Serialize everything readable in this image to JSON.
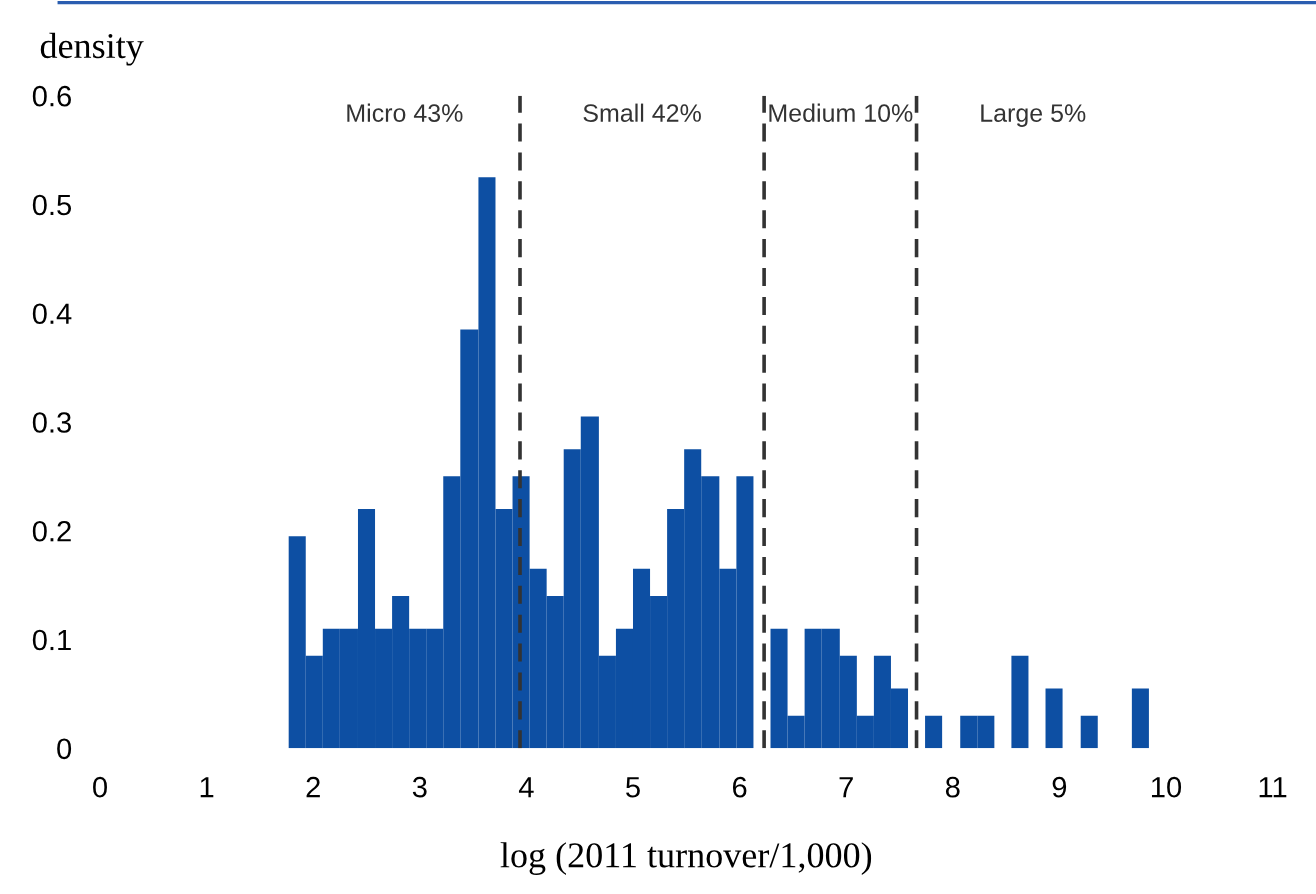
{
  "chart_data": {
    "type": "histogram",
    "xlabel": "log (2011 turnover/1,000)",
    "ylabel": "density",
    "color": "#0d4fa3",
    "bins": [
      1.77,
      1.93,
      2.09,
      2.25,
      2.42,
      2.58,
      2.74,
      2.9,
      3.06,
      3.22,
      3.38,
      3.55,
      3.71,
      3.87,
      4.03,
      4.19,
      4.35,
      4.51,
      4.68,
      4.84,
      5.0,
      5.16,
      5.32,
      5.48,
      5.64,
      5.81,
      5.97,
      6.13,
      6.29,
      6.45,
      6.61,
      6.77,
      6.94,
      7.1,
      7.26,
      7.42,
      7.58,
      7.74,
      7.9,
      8.07,
      8.23,
      8.39,
      8.55,
      8.71,
      8.87,
      9.03,
      9.2,
      9.36,
      9.68,
      9.84
    ],
    "values": [
      0.195,
      0.085,
      0.11,
      0.11,
      0.22,
      0.11,
      0.14,
      0.11,
      0.11,
      0.25,
      0.385,
      0.525,
      0.22,
      0.25,
      0.165,
      0.14,
      0.275,
      0.305,
      0.085,
      0.11,
      0.165,
      0.14,
      0.22,
      0.275,
      0.25,
      0.165,
      0.25,
      0,
      0.11,
      0.03,
      0.11,
      0.11,
      0.085,
      0.03,
      0.085,
      0.055,
      0,
      0.03,
      0,
      0.03,
      0.03,
      0,
      0.085,
      0,
      0.055,
      0,
      0.03,
      0,
      0.055
    ],
    "xlim": [
      0,
      11
    ],
    "xticks": [
      0,
      1,
      2,
      3,
      4,
      5,
      6,
      7,
      8,
      9,
      10,
      11
    ],
    "ylim": [
      0,
      0.6
    ],
    "yticks": [
      0,
      0.1,
      0.2,
      0.3,
      0.4,
      0.5,
      0.6
    ],
    "grid": false,
    "legend": false,
    "ref_lines": [
      {
        "axis": "x",
        "value": 3.94,
        "color": "#333333",
        "line_style": "dashed"
      },
      {
        "axis": "x",
        "value": 6.23,
        "color": "#333333",
        "line_style": "dashed"
      },
      {
        "axis": "x",
        "value": 7.66,
        "color": "#333333",
        "line_style": "dashed"
      }
    ],
    "annotations": [
      "Micro 43%",
      "Small 42%",
      "Medium 10%",
      "Large 5%"
    ]
  }
}
